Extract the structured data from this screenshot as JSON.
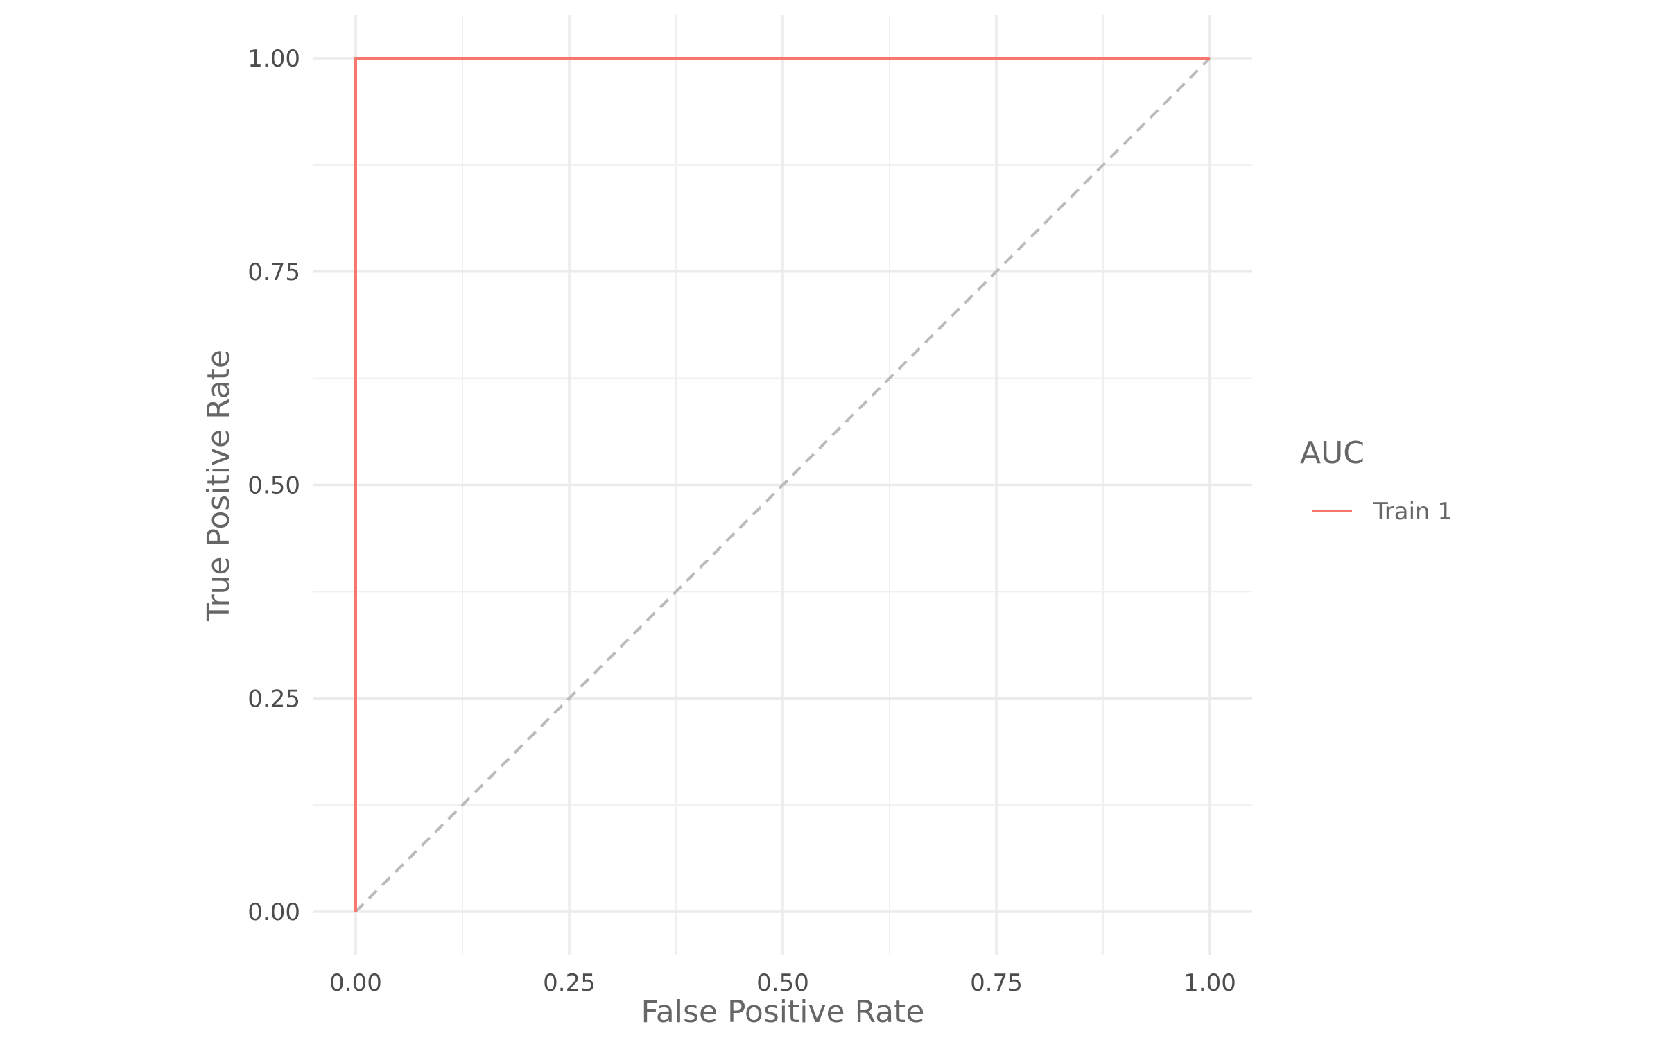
{
  "chart_data": {
    "type": "line",
    "title": "",
    "xlabel": "False Positive Rate",
    "ylabel": "True Positive Rate",
    "xlim": [
      0,
      1
    ],
    "ylim": [
      0,
      1
    ],
    "x_ticks": [
      "0.00",
      "0.25",
      "0.50",
      "0.75",
      "1.00"
    ],
    "y_ticks": [
      "0.00",
      "0.25",
      "0.50",
      "0.75",
      "1.00"
    ],
    "grid": true,
    "legend": {
      "title": "AUC",
      "placement": "right"
    },
    "series": [
      {
        "name": "Train 1",
        "color": "#F8766D",
        "style": "solid",
        "x": [
          0,
          0,
          1
        ],
        "y": [
          0,
          1,
          1
        ]
      }
    ],
    "reference_line": {
      "color": "#BBBBBB",
      "style": "dashed",
      "x": [
        0,
        1
      ],
      "y": [
        0,
        1
      ]
    }
  }
}
